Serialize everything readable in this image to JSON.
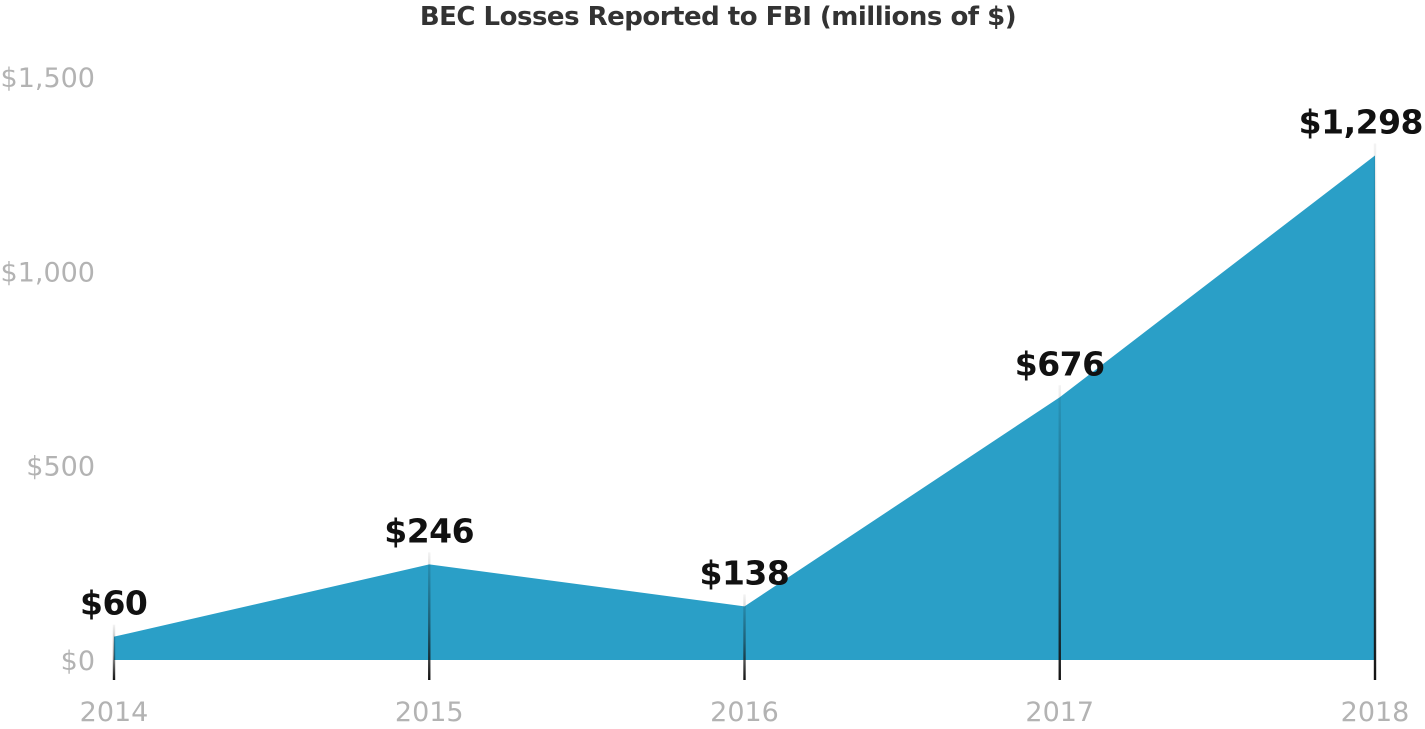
{
  "chart_data": {
    "type": "area",
    "title": "BEC Losses Reported to FBI (millions of $)",
    "xlabel": "",
    "ylabel": "",
    "categories": [
      "2014",
      "2015",
      "2016",
      "2017",
      "2018"
    ],
    "values": [
      60,
      246,
      138,
      676,
      1298
    ],
    "data_labels": [
      "$60",
      "$246",
      "$138",
      "$676",
      "$1,298"
    ],
    "y_ticks": [
      0,
      500,
      1000,
      1500
    ],
    "y_tick_labels": [
      "$0",
      "$500",
      "$1,000",
      "$1,500"
    ],
    "ylim": [
      0,
      1500
    ],
    "grid": true,
    "legend": "none",
    "colors": {
      "area": "#2a9fc7",
      "gridline": "#9a9a9a",
      "axis_text": "#b3b3b3",
      "title": "#333333",
      "data_label": "#111111",
      "marker_line": "#111111"
    }
  }
}
